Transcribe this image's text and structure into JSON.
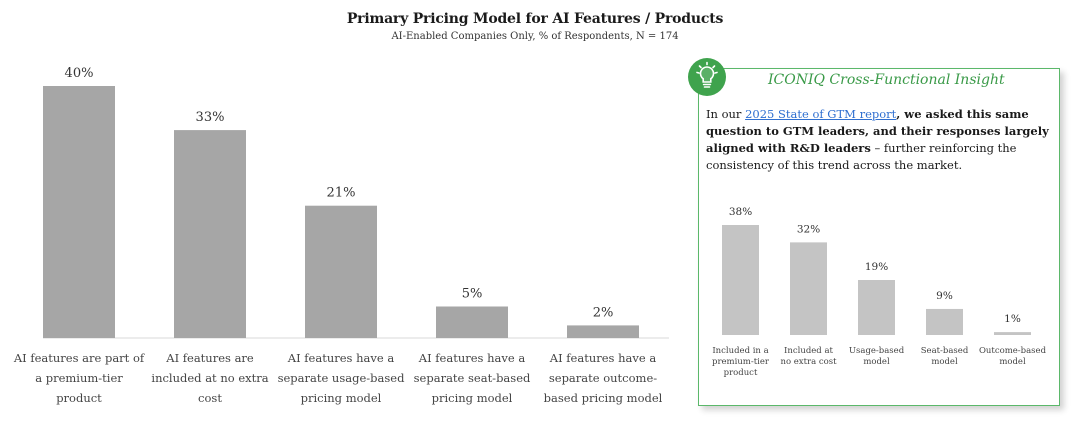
{
  "title": "Primary Pricing Model for AI Features / Products",
  "subtitle": "AI-Enabled Companies Only, % of Respondents, N = 174",
  "chart_data": [
    {
      "type": "bar",
      "title": "Primary Pricing Model for AI Features / Products",
      "subtitle": "AI-Enabled Companies Only, % of Respondents, N = 174",
      "categories": [
        [
          "AI features are part of",
          "a premium-tier",
          "product"
        ],
        [
          "AI features are",
          "included at no extra",
          "cost"
        ],
        [
          "AI features have a",
          "separate usage-based",
          "pricing model"
        ],
        [
          "AI features have a",
          "separate seat-based",
          "pricing model"
        ],
        [
          "AI features have a",
          "separate outcome-",
          "based pricing model"
        ]
      ],
      "values": [
        40,
        33,
        21,
        5,
        2
      ],
      "value_labels": [
        "40%",
        "33%",
        "21%",
        "5%",
        "2%"
      ],
      "ylim": [
        0,
        40
      ],
      "color": "#a6a6a6",
      "grid": false
    },
    {
      "type": "bar",
      "categories": [
        [
          "Included in a",
          "premium-tier",
          "product"
        ],
        [
          "Included at",
          "no extra cost"
        ],
        [
          "Usage-based",
          "model"
        ],
        [
          "Seat-based",
          "model"
        ],
        [
          "Outcome-based",
          "model"
        ]
      ],
      "values": [
        38,
        32,
        19,
        9,
        1
      ],
      "value_labels": [
        "38%",
        "32%",
        "19%",
        "9%",
        "1%"
      ],
      "ylim": [
        0,
        38
      ],
      "color": "#c4c4c4",
      "grid": false
    }
  ],
  "insight": {
    "heading": "ICONIQ Cross-Functional Insight",
    "intro": "In our ",
    "link_text": "2025 State of GTM report",
    "bold_text": ", we asked this same question to GTM leaders, and their responses largely aligned with R&D leaders",
    "rest_text": " – further reinforcing the consistency of this trend across the market.",
    "icon": "lightbulb-icon",
    "accent": "#3fa34d"
  }
}
